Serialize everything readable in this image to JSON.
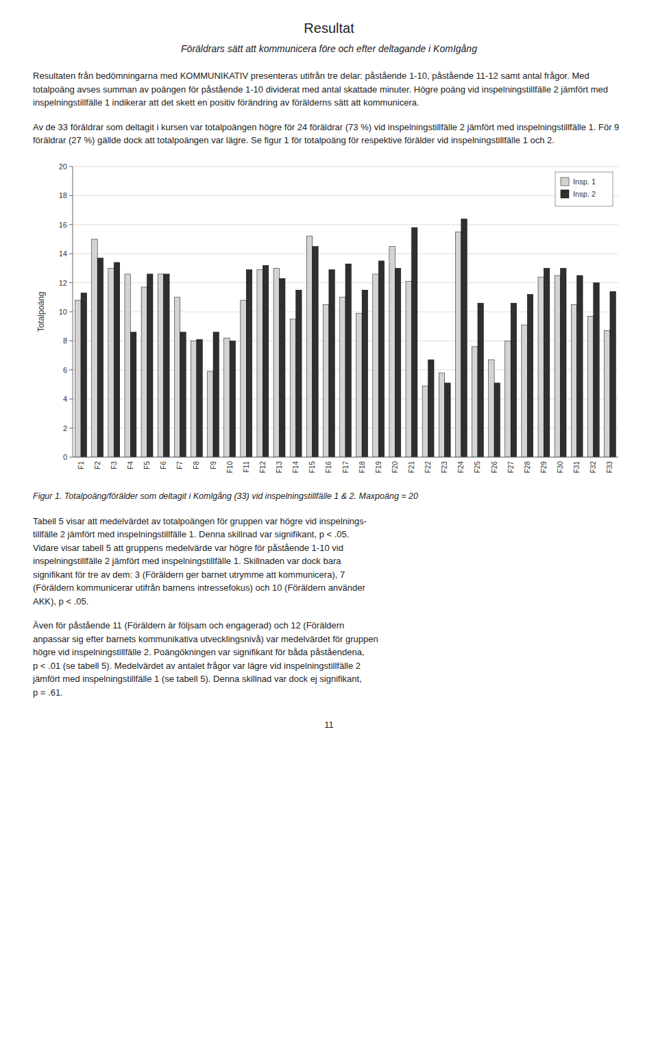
{
  "chart_data": {
    "type": "bar",
    "title": "Resultat",
    "subtitle": "Föräldrars sätt att kommunicera före och efter deltagande i KomIgång",
    "annotations": [
      "Resultaten från bedömningarna med KOMMUNIKATIV presenteras utifrån tre delar: påstående 1-10, påstående 11-12 samt antal frågor. Med totalpoäng avses summan av poängen för påstående 1-10 dividerat med antal skattade minuter. Högre poäng vid inspelningstillfälle 2 jämfört med inspelningstillfälle 1 indikerar att det skett en positiv förändring av förälderns sätt att kommunicera.",
      "Av de 33 föräldrar som deltagit i kursen var totalpoängen högre för 24 föräldrar (73 %) vid inspelningstillfälle 2 jämfört med inspelningstillfälle 1. För 9 föräldrar (27 %) gällde dock att totalpoängen var lägre. Se figur 1 för totalpoäng för respektive förälder vid inspelningstillfälle 1 och 2.",
      "Tabell 5 visar att medelvärdet av totalpoängen för gruppen var högre vid inspelnings-\ntillfälle 2 jämfört med inspelningstillfälle 1. Denna skillnad var signifikant, p < .05.\nVidare visar tabell 5 att gruppens medelvärde var högre för påstående 1-10 vid\ninspelningstillfälle 2 jämfört med inspelningstillfälle 1. Skillnaden var dock bara\nsignifikant för tre av dem: 3 (Föräldern ger barnet utrymme att kommunicera), 7\n(Föräldern kommunicerar utifrån barnens intressefokus) och 10 (Föräldern använder\nAKK), p < .05.",
      "Även för påstående 11 (Föräldern är följsam och engagerad) och 12 (Föräldern\nanpassar sig efter barnets kommunikativa utvecklingsnivå) var medelvärdet för gruppen\nhögre vid inspelningstillfälle 2. Poängökningen var signifikant för båda påståendena,\np < .01 (se tabell 5). Medelvärdet av antalet frågor var lägre vid inspelningstillfälle 2\njämfört med inspelningstillfälle 1 (se tabell 5). Denna skillnad var dock ej signifikant,\np = .61.",
      "11"
    ],
    "caption": "Figur 1. Totalpoäng/förälder som deltagit i Komlgång (33) vid inspelningstillfälle 1 & 2. Maxpoäng = 20",
    "categories": [
      "F1",
      "F2",
      "F3",
      "F4",
      "F5",
      "F6",
      "F7",
      "F8",
      "F9",
      "F10",
      "F11",
      "F12",
      "F13",
      "F14",
      "F15",
      "F16",
      "F17",
      "F18",
      "F19",
      "F20",
      "F21",
      "F22",
      "F23",
      "F24",
      "F25",
      "F26",
      "F27",
      "F28",
      "F29",
      "F30",
      "F31",
      "F32",
      "F33"
    ],
    "series": [
      {
        "name": "Insp. 1",
        "color": "#d3d3d3",
        "values": [
          10.8,
          15.0,
          13.0,
          12.6,
          11.7,
          12.6,
          11.0,
          8.0,
          5.9,
          8.2,
          10.8,
          12.9,
          13.0,
          9.5,
          15.2,
          10.5,
          11.0,
          9.9,
          12.6,
          14.5,
          12.1,
          4.9,
          5.8,
          15.5,
          7.6,
          6.7,
          8.0,
          9.1,
          12.4,
          12.5,
          10.5,
          9.7,
          8.7
        ]
      },
      {
        "name": "Insp. 2",
        "color": "#2f2f2f",
        "values": [
          11.3,
          13.7,
          13.4,
          8.6,
          12.6,
          12.6,
          8.6,
          8.1,
          8.6,
          8.0,
          12.9,
          13.2,
          12.3,
          11.5,
          14.5,
          12.9,
          13.3,
          11.5,
          13.5,
          13.0,
          15.8,
          6.7,
          5.1,
          16.4,
          10.6,
          5.1,
          10.6,
          11.2,
          13.0,
          13.0,
          12.5,
          12.0,
          11.4
        ]
      }
    ],
    "ylabel": "Totalpoäng",
    "ylim": [
      0,
      20
    ],
    "yticks": [
      0,
      2,
      4,
      6,
      8,
      10,
      12,
      14,
      16,
      18,
      20
    ],
    "grid": true,
    "legend": "upper right"
  }
}
